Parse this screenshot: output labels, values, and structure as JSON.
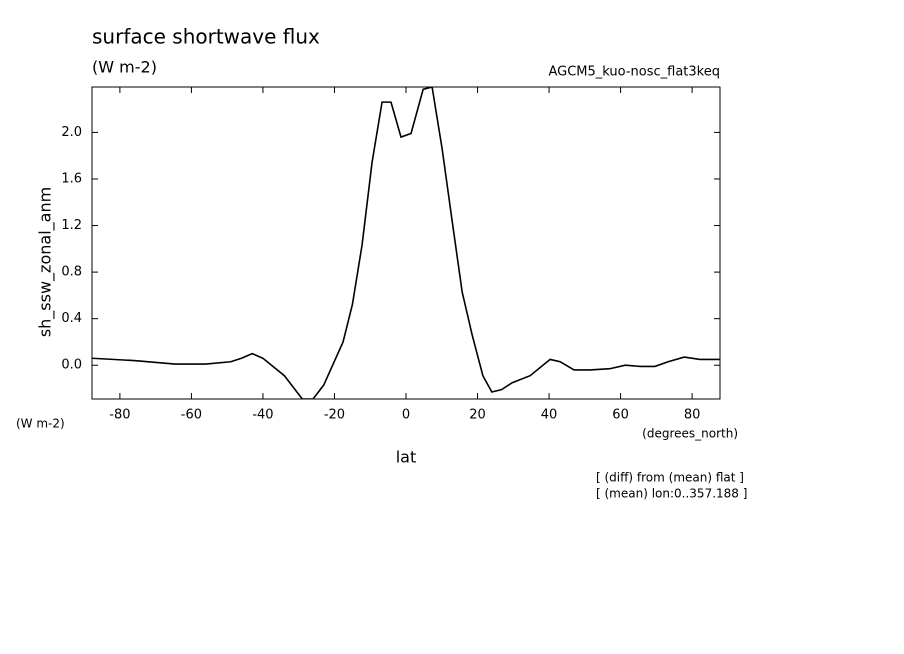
{
  "chart_data": {
    "type": "line",
    "title": "surface shortwave flux",
    "subtitle": "(W m-2)",
    "experiment": "AGCM5_kuo-nosc_flat3keq",
    "ylabel": "sh_ssw_zonal_anm",
    "yunit": "(W m-2)",
    "xlabel": "lat",
    "xunit": "(degrees_north)",
    "notes": [
      "[ (diff) from (mean) flat ]",
      "[ (mean) lon:0..357.188 ]"
    ],
    "x": [
      -87.8,
      -76,
      -64.6,
      -56,
      -49,
      -46,
      -43,
      -40,
      -34,
      -29,
      -26,
      -23,
      -17.6,
      -15,
      -12.3,
      -9.5,
      -6.7,
      -4.2,
      -1.4,
      1.4,
      4.8,
      7.3,
      10.1,
      12.9,
      15.7,
      18.5,
      21.5,
      24,
      26.7,
      29.7,
      34.7,
      40.3,
      43.1,
      47,
      51.5,
      57,
      61.3,
      65.5,
      69.6,
      73.3,
      77.8,
      82.2,
      87.8
    ],
    "series": [
      {
        "name": "sh_ssw_zonal_anm",
        "color": "#000000",
        "values": [
          0.06,
          0.04,
          0.01,
          0.01,
          0.03,
          0.06,
          0.1,
          0.06,
          -0.09,
          -0.29,
          -0.29,
          -0.17,
          0.2,
          0.52,
          1.03,
          1.74,
          2.26,
          2.26,
          1.96,
          1.99,
          2.37,
          2.39,
          1.86,
          1.24,
          0.63,
          0.26,
          -0.09,
          -0.23,
          -0.21,
          -0.15,
          -0.09,
          0.05,
          0.03,
          -0.04,
          -0.04,
          -0.03,
          0.0,
          -0.01,
          -0.01,
          0.03,
          0.07,
          0.05,
          0.05
        ]
      }
    ],
    "xlim": [
      -87.8,
      87.8
    ],
    "ylim": [
      -0.29,
      2.39
    ],
    "xticks": [
      -80,
      -60,
      -40,
      -20,
      0,
      20,
      40,
      60,
      80
    ],
    "yticks": [
      {
        "value": 0,
        "label": "0.0"
      },
      0.4,
      0.8,
      1.2,
      1.6,
      {
        "value": 2,
        "label": "2.0"
      }
    ],
    "grid": false
  }
}
